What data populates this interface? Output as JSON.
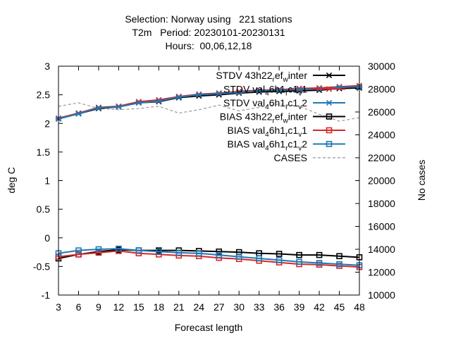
{
  "chart_data": {
    "type": "line",
    "title_lines": [
      "Selection: Norway using   221 stations",
      "T2m   Period: 20230101-20230131",
      "Hours:  00,06,12,18"
    ],
    "xlabel": "Forecast length",
    "ylabel": "deg C",
    "y2label": "No cases",
    "x": [
      3,
      6,
      9,
      12,
      15,
      18,
      21,
      24,
      27,
      30,
      33,
      36,
      39,
      42,
      45,
      48
    ],
    "xlim": [
      3,
      48
    ],
    "ylim": [
      -1,
      3
    ],
    "y2lim": [
      10000,
      30000
    ],
    "xticks": [
      3,
      6,
      9,
      12,
      15,
      18,
      21,
      24,
      27,
      30,
      33,
      36,
      39,
      42,
      45,
      48
    ],
    "yticks": [
      -1,
      -0.5,
      0,
      0.5,
      1,
      1.5,
      2,
      2.5,
      3
    ],
    "y2ticks": [
      10000,
      12000,
      14000,
      16000,
      18000,
      20000,
      22000,
      24000,
      26000,
      28000,
      30000
    ],
    "grid": false,
    "legend_position": "top-right",
    "series": [
      {
        "label_parts": [
          [
            "STDV 43h22",
            ""
          ],
          [
            "r",
            "sub"
          ],
          [
            "ef",
            ""
          ],
          [
            "w",
            "sub"
          ],
          [
            "inter",
            ""
          ]
        ],
        "color": "#000000",
        "marker": "star",
        "axis": "y",
        "values": [
          2.08,
          2.17,
          2.26,
          2.29,
          2.36,
          2.38,
          2.45,
          2.48,
          2.5,
          2.53,
          2.55,
          2.56,
          2.57,
          2.58,
          2.61,
          2.62
        ]
      },
      {
        "label_parts": [
          [
            "STDV val",
            ""
          ],
          [
            "4",
            "sub"
          ],
          [
            "6h1",
            ""
          ],
          [
            "r",
            "sub"
          ],
          [
            "c1",
            ""
          ],
          [
            "v",
            "sub"
          ],
          [
            "1",
            ""
          ]
        ],
        "color": "#d62728",
        "marker": "star",
        "axis": "y",
        "values": [
          2.09,
          2.18,
          2.28,
          2.3,
          2.38,
          2.41,
          2.47,
          2.51,
          2.53,
          2.56,
          2.58,
          2.59,
          2.61,
          2.62,
          2.64,
          2.66
        ]
      },
      {
        "label_parts": [
          [
            "STDV val",
            ""
          ],
          [
            "4",
            "sub"
          ],
          [
            "6h1",
            ""
          ],
          [
            "r",
            "sub"
          ],
          [
            "c1",
            ""
          ],
          [
            "v",
            "sub"
          ],
          [
            "2",
            ""
          ]
        ],
        "color": "#1f77b4",
        "marker": "star",
        "axis": "y",
        "values": [
          2.08,
          2.17,
          2.27,
          2.29,
          2.36,
          2.39,
          2.46,
          2.5,
          2.52,
          2.54,
          2.57,
          2.58,
          2.59,
          2.6,
          2.63,
          2.64
        ]
      },
      {
        "label_parts": [
          [
            "BIAS 43h22",
            ""
          ],
          [
            "r",
            "sub"
          ],
          [
            "ef",
            ""
          ],
          [
            "w",
            "sub"
          ],
          [
            "inter",
            ""
          ]
        ],
        "color": "#000000",
        "marker": "square",
        "axis": "y",
        "values": [
          -0.36,
          -0.29,
          -0.24,
          -0.21,
          -0.22,
          -0.22,
          -0.22,
          -0.23,
          -0.24,
          -0.25,
          -0.27,
          -0.28,
          -0.3,
          -0.3,
          -0.32,
          -0.34
        ]
      },
      {
        "label_parts": [
          [
            "BIAS val",
            ""
          ],
          [
            "4",
            "sub"
          ],
          [
            "6h1",
            ""
          ],
          [
            "r",
            "sub"
          ],
          [
            "c1",
            ""
          ],
          [
            "v",
            "sub"
          ],
          [
            "1",
            ""
          ]
        ],
        "color": "#d62728",
        "marker": "square",
        "axis": "y",
        "values": [
          -0.33,
          -0.29,
          -0.26,
          -0.23,
          -0.27,
          -0.29,
          -0.31,
          -0.32,
          -0.35,
          -0.37,
          -0.4,
          -0.43,
          -0.46,
          -0.47,
          -0.49,
          -0.51
        ]
      },
      {
        "label_parts": [
          [
            "BIAS val",
            ""
          ],
          [
            "4",
            "sub"
          ],
          [
            "6h1",
            ""
          ],
          [
            "r",
            "sub"
          ],
          [
            "c1",
            ""
          ],
          [
            "v",
            "sub"
          ],
          [
            "2",
            ""
          ]
        ],
        "color": "#1f77b4",
        "marker": "square",
        "axis": "y",
        "values": [
          -0.27,
          -0.22,
          -0.2,
          -0.19,
          -0.22,
          -0.24,
          -0.26,
          -0.27,
          -0.3,
          -0.33,
          -0.36,
          -0.39,
          -0.42,
          -0.44,
          -0.46,
          -0.48
        ]
      },
      {
        "label_parts": [
          [
            "CASES",
            ""
          ]
        ],
        "color": "#999999",
        "marker": "none",
        "dashed": true,
        "axis": "y2",
        "values": [
          26500,
          26800,
          26300,
          26200,
          26300,
          26500,
          25900,
          26200,
          26600,
          26100,
          26400,
          26700,
          26500,
          25800,
          25200,
          25500
        ]
      }
    ]
  }
}
